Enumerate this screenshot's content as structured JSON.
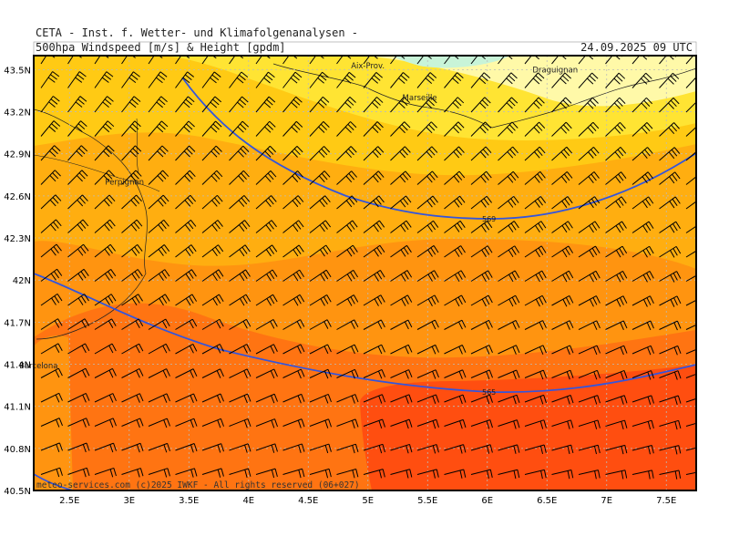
{
  "header": {
    "institute": "CETA - Inst. f. Wetter- und Klimafolgenanalysen -",
    "product": "500hpa Windspeed [m/s] & Height [gpdm]",
    "valid_time": "24.09.2025 09 UTC"
  },
  "map": {
    "lon_range": [
      2.2,
      7.75
    ],
    "lat_range": [
      40.5,
      43.6
    ],
    "lon_ticks": [
      "2.5E",
      "3E",
      "3.5E",
      "4E",
      "4.5E",
      "5E",
      "5.5E",
      "6E",
      "6.5E",
      "7E",
      "7.5E"
    ],
    "lat_ticks": [
      "43.5N",
      "43.2N",
      "42.9N",
      "42.6N",
      "42.3N",
      "42N",
      "41.7N",
      "41.4N",
      "41.1N",
      "40.8N",
      "40.5N"
    ],
    "cities": [
      {
        "name": "Aix-Prov.",
        "lon": 4.95,
        "lat": 43.53
      },
      {
        "name": "Draguignan",
        "lon": 6.47,
        "lat": 43.5
      },
      {
        "name": "Marseille",
        "lon": 5.38,
        "lat": 43.3
      },
      {
        "name": "Perpignan",
        "lon": 2.89,
        "lat": 42.7
      },
      {
        "name": "Barcelona",
        "lon": 2.17,
        "lat": 41.39
      }
    ],
    "contours": [
      {
        "label": "569",
        "value": 569
      },
      {
        "label": "565",
        "value": 565
      }
    ],
    "credit": "meteo-services.com (c)2025 IWKF - All rights reserved (06+027)",
    "colors": {
      "wind_lt_20": "#fff9a8",
      "wind_20_25": "#ffe433",
      "wind_25_30": "#ffca14",
      "wind_30_35": "#ffae10",
      "wind_35_40": "#ff9410",
      "wind_40_45": "#ff7412",
      "wind_gt_45": "#ff4e10",
      "contour": "#3355dd",
      "grid": "#bbbbbb"
    }
  }
}
